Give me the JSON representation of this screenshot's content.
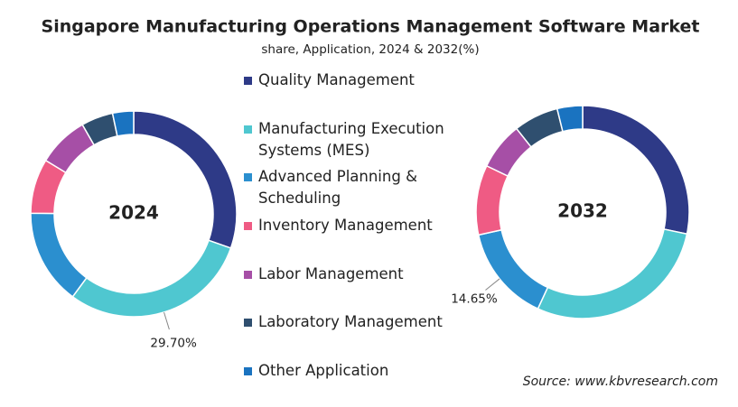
{
  "title": "Singapore Manufacturing Operations Management Software Market",
  "subtitle": "share, Application, 2024 & 2032(%)",
  "source": "Source: www.kbvresearch.com",
  "chart_data": [
    {
      "type": "donut",
      "title": "2024",
      "categories": [
        "Quality Management",
        "Manufacturing Execution Systems (MES)",
        "Advanced Planning & Scheduling",
        "Inventory Management",
        "Labor Management",
        "Laboratory Management",
        "Other Application"
      ],
      "values": [
        30.4,
        29.7,
        15.0,
        8.6,
        8.0,
        5.0,
        3.3
      ],
      "value_labels": [
        null,
        "29.70%",
        null,
        null,
        null,
        null,
        null
      ],
      "colors": [
        "#2e3a87",
        "#4fc7d0",
        "#2b8fcf",
        "#ef5b84",
        "#a64fa6",
        "#2f4f6f",
        "#1a73c0"
      ]
    },
    {
      "type": "donut",
      "title": "2032",
      "categories": [
        "Quality Management",
        "Manufacturing Execution Systems (MES)",
        "Advanced Planning & Scheduling",
        "Inventory Management",
        "Labor Management",
        "Laboratory Management",
        "Other Application"
      ],
      "values": [
        28.3,
        28.6,
        14.65,
        10.6,
        7.2,
        6.8,
        3.85
      ],
      "value_labels": [
        null,
        null,
        "14.65%",
        null,
        null,
        null,
        null
      ],
      "colors": [
        "#2e3a87",
        "#4fc7d0",
        "#2b8fcf",
        "#ef5b84",
        "#a64fa6",
        "#2f4f6f",
        "#1a73c0"
      ]
    }
  ]
}
